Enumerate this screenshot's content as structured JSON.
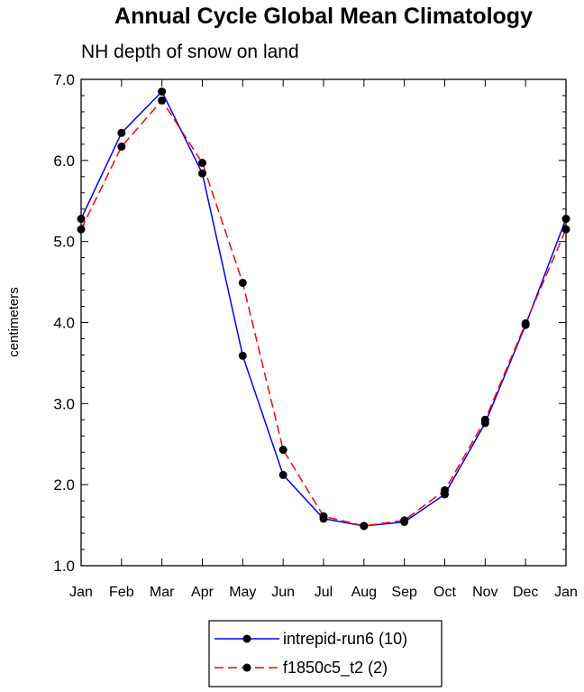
{
  "chart_data": {
    "type": "line",
    "title": "Annual Cycle Global Mean Climatology",
    "subtitle": "NH depth of snow on land",
    "xlabel": "",
    "ylabel": "centimeters",
    "ylim": [
      1.0,
      7.0
    ],
    "yticks": [
      "1.0",
      "2.0",
      "3.0",
      "4.0",
      "5.0",
      "6.0",
      "7.0"
    ],
    "categories": [
      "Jan",
      "Feb",
      "Mar",
      "Apr",
      "May",
      "Jun",
      "Jul",
      "Aug",
      "Sep",
      "Oct",
      "Nov",
      "Dec",
      "Jan"
    ],
    "series": [
      {
        "name": "intrepid-run6 (10)",
        "color": "#0000ff",
        "dash": "solid",
        "values": [
          5.28,
          6.34,
          6.85,
          5.84,
          3.59,
          2.12,
          1.58,
          1.49,
          1.54,
          1.88,
          2.76,
          3.97,
          5.28
        ]
      },
      {
        "name": "f1850c5_t2 (2)",
        "color": "#ff0000",
        "dash": "dashed",
        "values": [
          5.15,
          6.17,
          6.74,
          5.97,
          4.49,
          2.43,
          1.61,
          1.49,
          1.56,
          1.93,
          2.8,
          3.99,
          5.15
        ]
      }
    ],
    "legend": "bottom-center"
  }
}
